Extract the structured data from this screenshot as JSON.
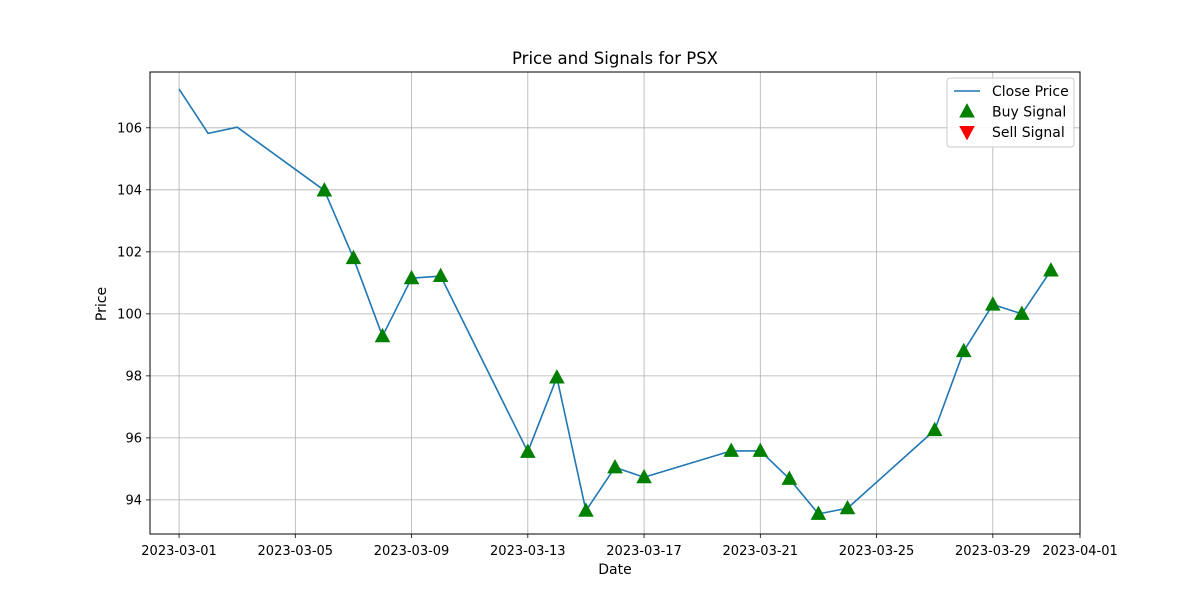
{
  "chart_data": {
    "type": "line",
    "title": "Price and Signals for PSX",
    "xlabel": "Date",
    "ylabel": "Price",
    "x_type": "date",
    "xlim": [
      "2023-02-28",
      "2023-04-01"
    ],
    "ylim": [
      92.9,
      107.8
    ],
    "x_ticks": [
      "2023-03-01",
      "2023-03-05",
      "2023-03-09",
      "2023-03-13",
      "2023-03-17",
      "2023-03-21",
      "2023-03-25",
      "2023-03-29",
      "2023-04-01"
    ],
    "y_ticks": [
      94,
      96,
      98,
      100,
      102,
      104,
      106
    ],
    "grid": true,
    "legend_position": "top-right",
    "series": [
      {
        "name": "Close Price",
        "kind": "line",
        "color": "#1f77b4",
        "points": [
          {
            "date": "2023-03-01",
            "value": 107.25
          },
          {
            "date": "2023-03-02",
            "value": 105.82
          },
          {
            "date": "2023-03-03",
            "value": 106.02
          },
          {
            "date": "2023-03-06",
            "value": 103.98
          },
          {
            "date": "2023-03-07",
            "value": 101.8
          },
          {
            "date": "2023-03-08",
            "value": 99.28
          },
          {
            "date": "2023-03-09",
            "value": 101.15
          },
          {
            "date": "2023-03-10",
            "value": 101.22
          },
          {
            "date": "2023-03-13",
            "value": 95.55
          },
          {
            "date": "2023-03-14",
            "value": 97.95
          },
          {
            "date": "2023-03-15",
            "value": 93.65
          },
          {
            "date": "2023-03-16",
            "value": 95.05
          },
          {
            "date": "2023-03-17",
            "value": 94.73
          },
          {
            "date": "2023-03-20",
            "value": 95.58
          },
          {
            "date": "2023-03-21",
            "value": 95.58
          },
          {
            "date": "2023-03-22",
            "value": 94.68
          },
          {
            "date": "2023-03-23",
            "value": 93.55
          },
          {
            "date": "2023-03-24",
            "value": 93.73
          },
          {
            "date": "2023-03-27",
            "value": 96.25
          },
          {
            "date": "2023-03-28",
            "value": 98.8
          },
          {
            "date": "2023-03-29",
            "value": 100.3
          },
          {
            "date": "2023-03-30",
            "value": 100.0
          },
          {
            "date": "2023-03-31",
            "value": 101.4
          }
        ]
      },
      {
        "name": "Buy Signal",
        "kind": "marker-up",
        "color": "#008000",
        "points": [
          {
            "date": "2023-03-06",
            "value": 103.98
          },
          {
            "date": "2023-03-07",
            "value": 101.8
          },
          {
            "date": "2023-03-08",
            "value": 99.28
          },
          {
            "date": "2023-03-09",
            "value": 101.15
          },
          {
            "date": "2023-03-10",
            "value": 101.22
          },
          {
            "date": "2023-03-13",
            "value": 95.55
          },
          {
            "date": "2023-03-14",
            "value": 97.95
          },
          {
            "date": "2023-03-15",
            "value": 93.65
          },
          {
            "date": "2023-03-16",
            "value": 95.05
          },
          {
            "date": "2023-03-17",
            "value": 94.73
          },
          {
            "date": "2023-03-20",
            "value": 95.58
          },
          {
            "date": "2023-03-21",
            "value": 95.58
          },
          {
            "date": "2023-03-22",
            "value": 94.68
          },
          {
            "date": "2023-03-23",
            "value": 93.55
          },
          {
            "date": "2023-03-24",
            "value": 93.73
          },
          {
            "date": "2023-03-27",
            "value": 96.25
          },
          {
            "date": "2023-03-28",
            "value": 98.8
          },
          {
            "date": "2023-03-29",
            "value": 100.3
          },
          {
            "date": "2023-03-30",
            "value": 100.0
          },
          {
            "date": "2023-03-31",
            "value": 101.4
          }
        ]
      },
      {
        "name": "Sell Signal",
        "kind": "marker-down",
        "color": "#ff0000",
        "points": []
      }
    ]
  }
}
